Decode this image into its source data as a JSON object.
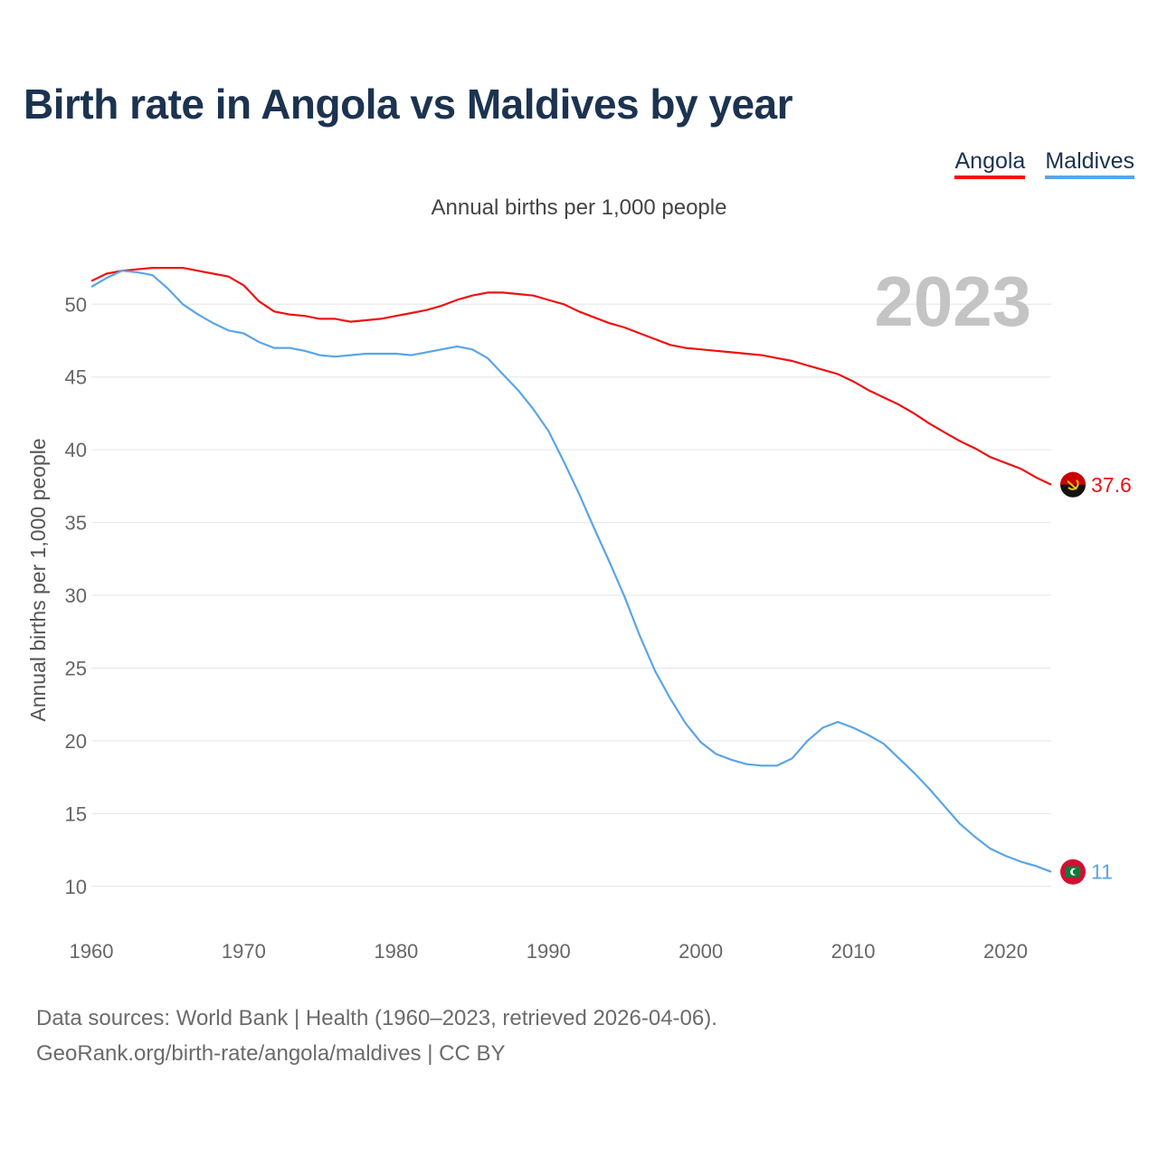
{
  "title": "Birth rate in Angola vs Maldives by year",
  "subtitle": "Annual births per 1,000 people",
  "legend": [
    {
      "label": "Angola",
      "color": "#ee1111"
    },
    {
      "label": "Maldives",
      "color": "#5aa5e6"
    }
  ],
  "footer": {
    "line1": "Data sources: World Bank | Health (1960–2023, retrieved 2026-04-06).",
    "line2": "GeoRank.org/birth-rate/angola/maldives | CC BY"
  },
  "chart_data": {
    "type": "line",
    "title": "Birth rate in Angola vs Maldives by year",
    "ylabel": "Annual births per 1,000 people",
    "xlabel": "",
    "current_year": "2023",
    "xlim": [
      1960,
      2023
    ],
    "ylim": [
      7.5,
      53.5
    ],
    "x_ticks": [
      1960,
      1970,
      1980,
      1990,
      2000,
      2010,
      2020
    ],
    "y_ticks": [
      10,
      15,
      20,
      25,
      30,
      35,
      40,
      45,
      50
    ],
    "grid": true,
    "x": [
      1960,
      1961,
      1962,
      1963,
      1964,
      1965,
      1966,
      1967,
      1968,
      1969,
      1970,
      1971,
      1972,
      1973,
      1974,
      1975,
      1976,
      1977,
      1978,
      1979,
      1980,
      1981,
      1982,
      1983,
      1984,
      1985,
      1986,
      1987,
      1988,
      1989,
      1990,
      1991,
      1992,
      1993,
      1994,
      1995,
      1996,
      1997,
      1998,
      1999,
      2000,
      2001,
      2002,
      2003,
      2004,
      2005,
      2006,
      2007,
      2008,
      2009,
      2010,
      2011,
      2012,
      2013,
      2014,
      2015,
      2016,
      2017,
      2018,
      2019,
      2020,
      2021,
      2022,
      2023
    ],
    "series": [
      {
        "name": "Angola",
        "color": "#ee1111",
        "end_label": "37.6",
        "values": [
          51.6,
          52.1,
          52.3,
          52.4,
          52.5,
          52.5,
          52.5,
          52.3,
          52.1,
          51.9,
          51.3,
          50.2,
          49.5,
          49.3,
          49.2,
          49.0,
          49.0,
          48.8,
          48.9,
          49.0,
          49.2,
          49.4,
          49.6,
          49.9,
          50.3,
          50.6,
          50.8,
          50.8,
          50.7,
          50.6,
          50.3,
          50.0,
          49.5,
          49.1,
          48.7,
          48.4,
          48.0,
          47.6,
          47.2,
          47.0,
          46.9,
          46.8,
          46.7,
          46.6,
          46.5,
          46.3,
          46.1,
          45.8,
          45.5,
          45.2,
          44.7,
          44.1,
          43.6,
          43.1,
          42.5,
          41.8,
          41.2,
          40.6,
          40.1,
          39.5,
          39.1,
          38.7,
          38.1,
          37.6
        ]
      },
      {
        "name": "Maldives",
        "color": "#5aa5e6",
        "end_label": "11",
        "values": [
          51.2,
          51.8,
          52.3,
          52.2,
          52.0,
          51.1,
          50.0,
          49.3,
          48.7,
          48.2,
          48.0,
          47.4,
          47.0,
          47.0,
          46.8,
          46.5,
          46.4,
          46.5,
          46.6,
          46.6,
          46.6,
          46.5,
          46.7,
          46.9,
          47.1,
          46.9,
          46.3,
          45.2,
          44.1,
          42.8,
          41.3,
          39.2,
          37.0,
          34.6,
          32.3,
          29.9,
          27.2,
          24.8,
          22.9,
          21.2,
          19.9,
          19.1,
          18.7,
          18.4,
          18.3,
          18.3,
          18.8,
          20.0,
          20.9,
          21.3,
          20.9,
          20.4,
          19.8,
          18.8,
          17.8,
          16.7,
          15.5,
          14.3,
          13.4,
          12.6,
          12.1,
          11.7,
          11.4,
          11.0
        ]
      }
    ]
  }
}
